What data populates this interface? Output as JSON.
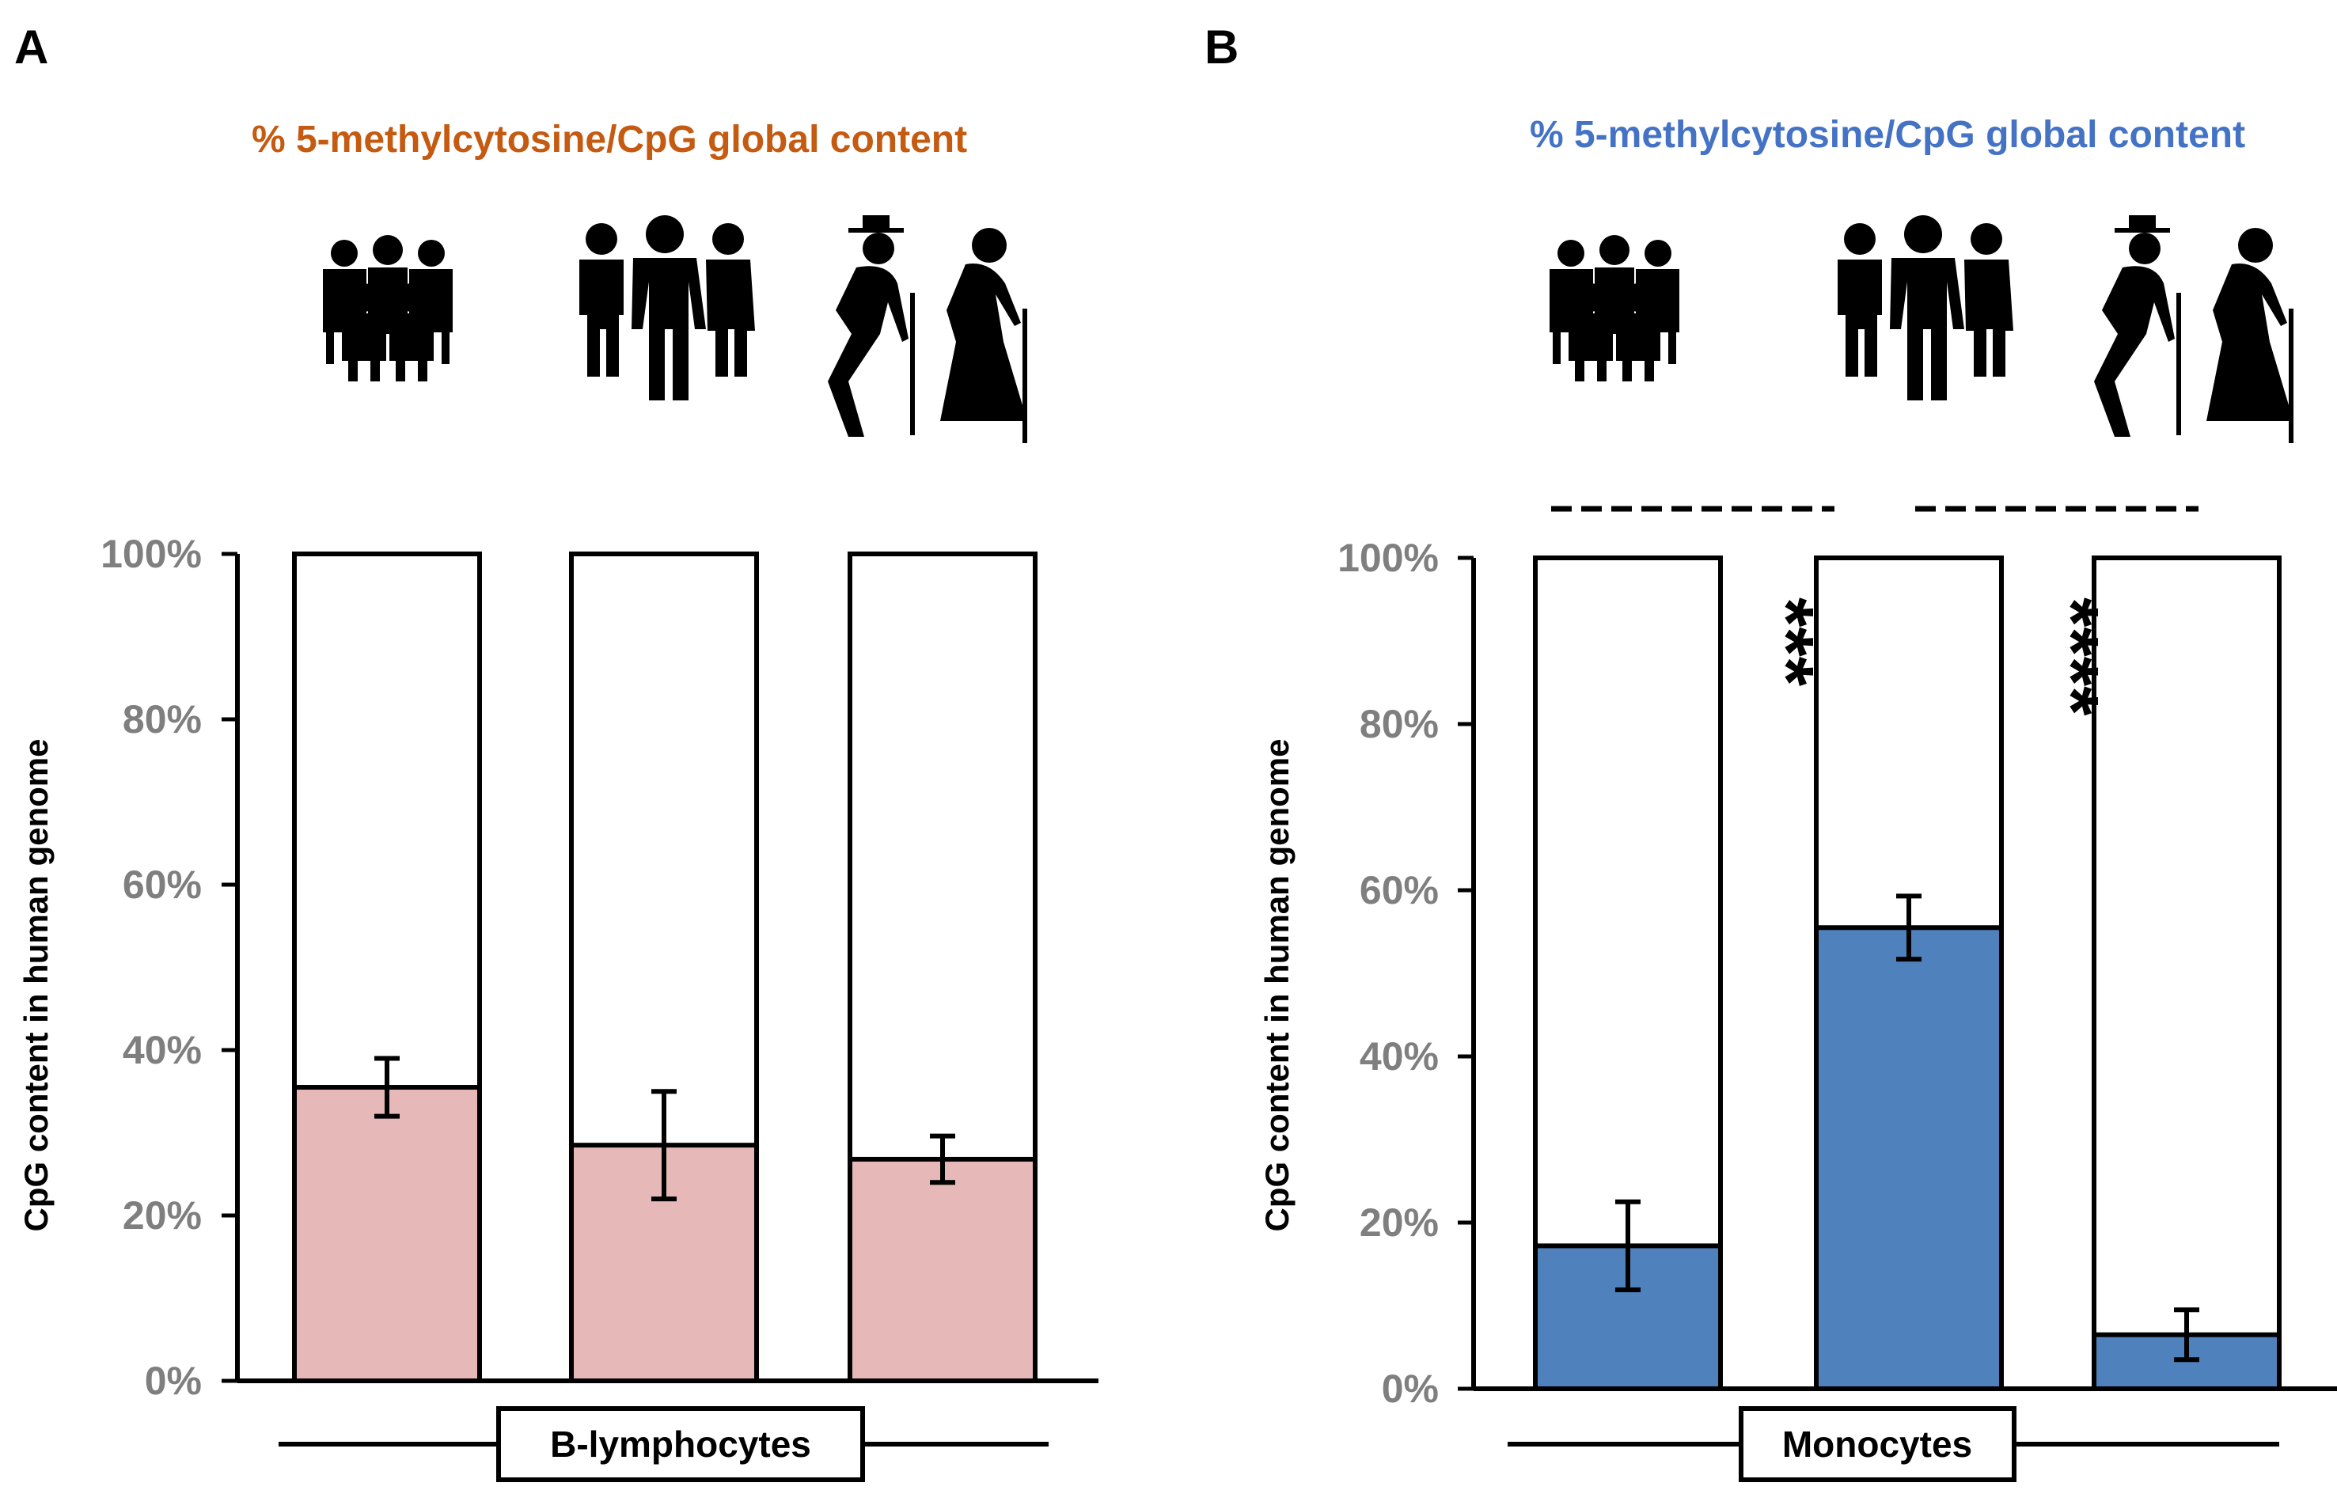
{
  "chart_data": [
    {
      "type": "bar",
      "panel": "A",
      "title": "% 5-methylcytosine/CpG global content",
      "title_color": "#c55a11",
      "bar_color": "#e6b8b7",
      "ylabel": "CpG content in human genome",
      "group_label": "B-lymphocytes",
      "categories": [
        "children",
        "adults",
        "elderly"
      ],
      "values": [
        35.5,
        28.5,
        26.8
      ],
      "errors": [
        3.5,
        6.5,
        2.8
      ],
      "ylim": [
        0,
        100
      ],
      "yticks": [
        "0%",
        "20%",
        "40%",
        "60%",
        "80%",
        "100%"
      ],
      "significance": []
    },
    {
      "type": "bar",
      "panel": "B",
      "title": "% 5-methylcytosine/CpG global content",
      "title_color": "#4472c4",
      "bar_color": "#4f81bd",
      "ylabel": "CpG content in human genome",
      "group_label": "Monocytes",
      "categories": [
        "children",
        "adults",
        "elderly"
      ],
      "values": [
        17.2,
        55.5,
        6.5
      ],
      "errors": [
        5.3,
        3.8,
        3.0
      ],
      "ylim": [
        0,
        100
      ],
      "yticks": [
        "0%",
        "20%",
        "40%",
        "60%",
        "80%",
        "100%"
      ],
      "significance": [
        {
          "between": [
            "children",
            "adults"
          ],
          "label": "***"
        },
        {
          "between": [
            "adults",
            "elderly"
          ],
          "label": "****"
        }
      ]
    }
  ],
  "icons": [
    "children-group-icon",
    "adults-group-icon",
    "elderly-couple-icon"
  ]
}
